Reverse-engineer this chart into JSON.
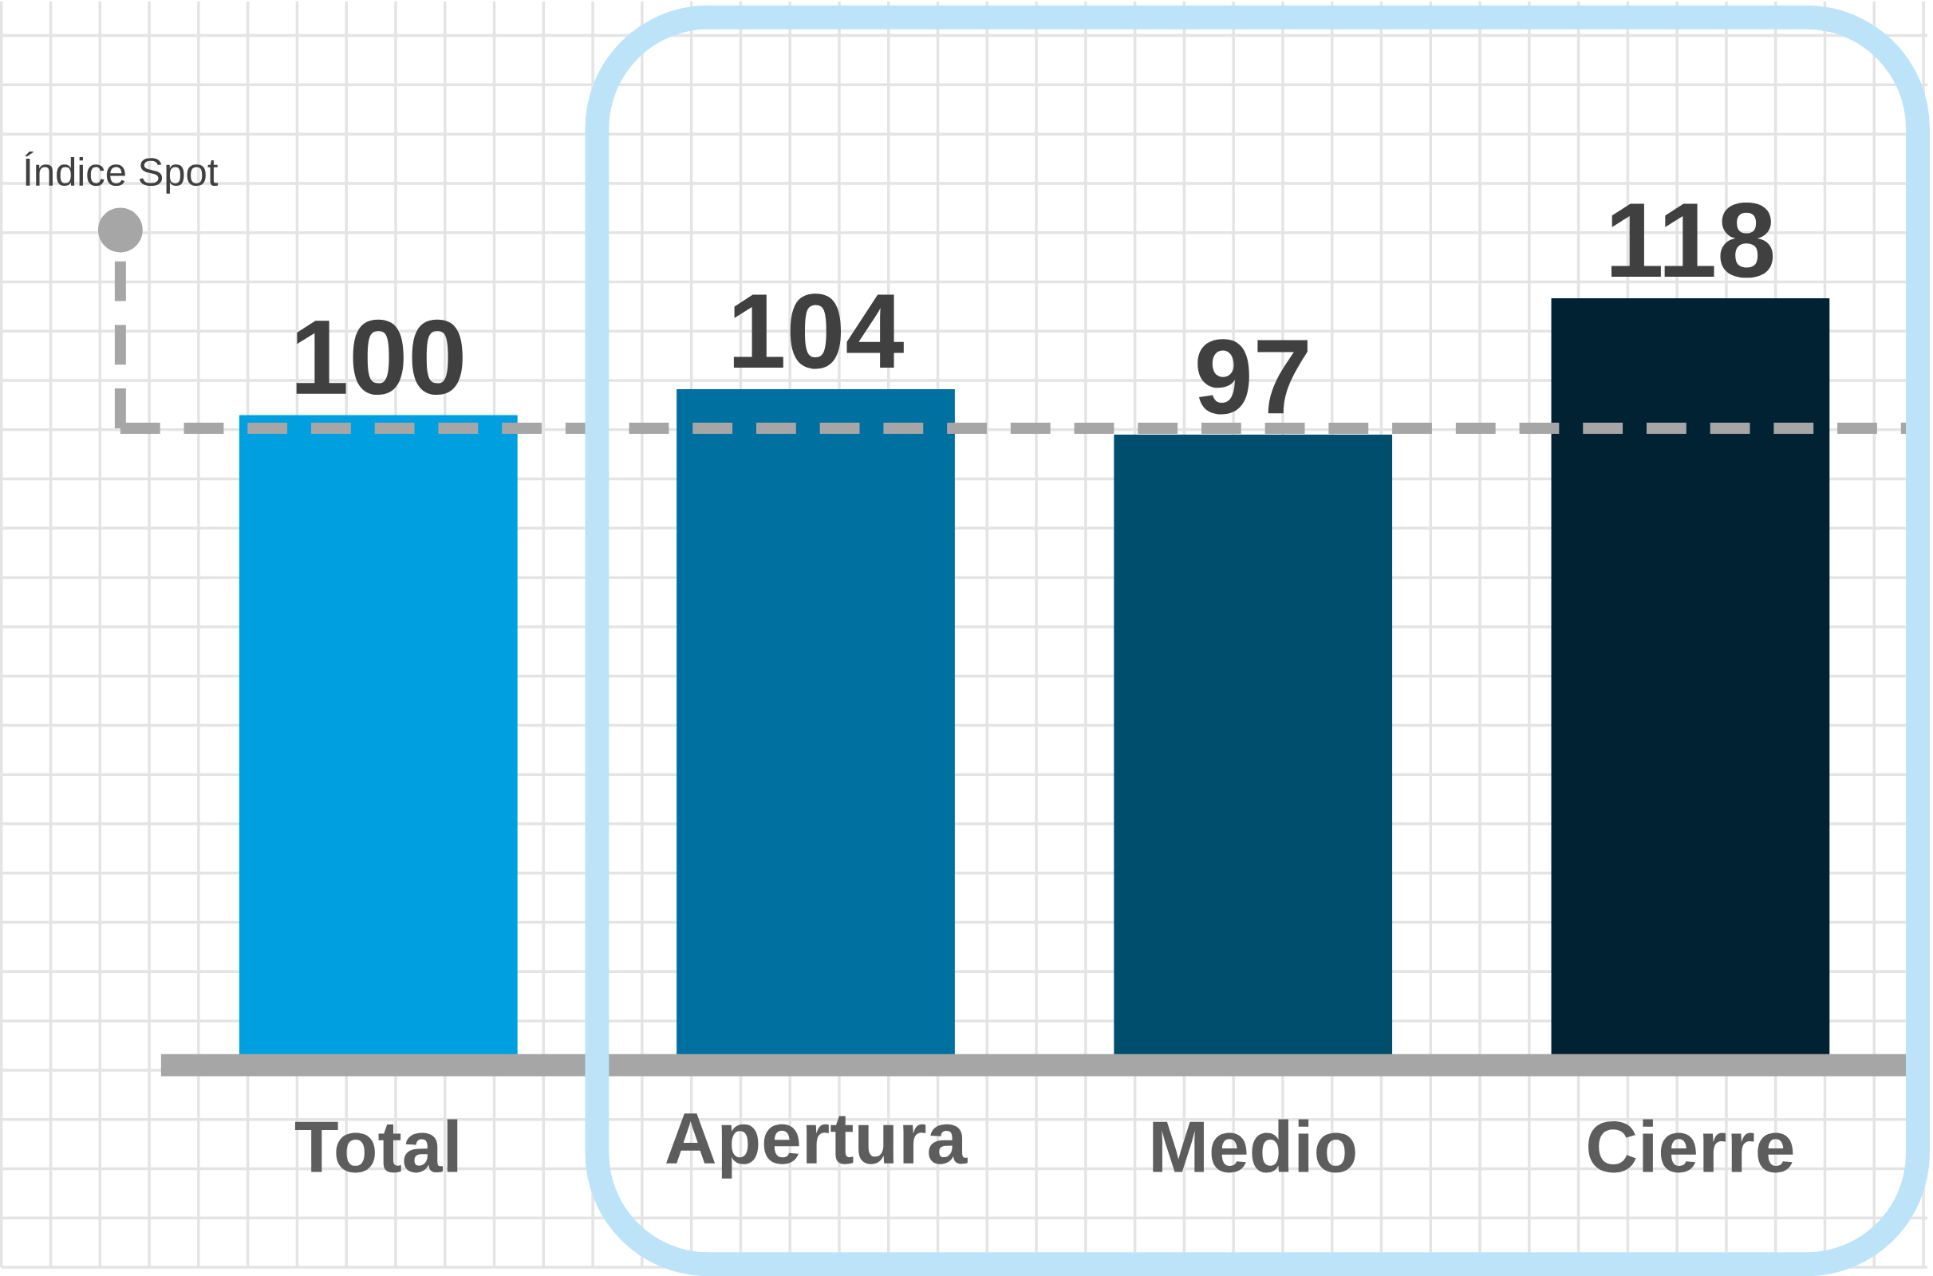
{
  "chart_data": {
    "type": "bar",
    "categories": [
      "Total",
      "Apertura",
      "Medio",
      "Cierre"
    ],
    "values": [
      100,
      104,
      97,
      118
    ],
    "colors": [
      "#009fdf",
      "#0070a0",
      "#004e6e",
      "#002233"
    ],
    "data_labels": true,
    "ref_lines": [
      {
        "axis": "y",
        "value": 98,
        "label": "Índice Spot",
        "color": "#a6a6a6",
        "line_style": "dashed"
      }
    ]
  }
}
